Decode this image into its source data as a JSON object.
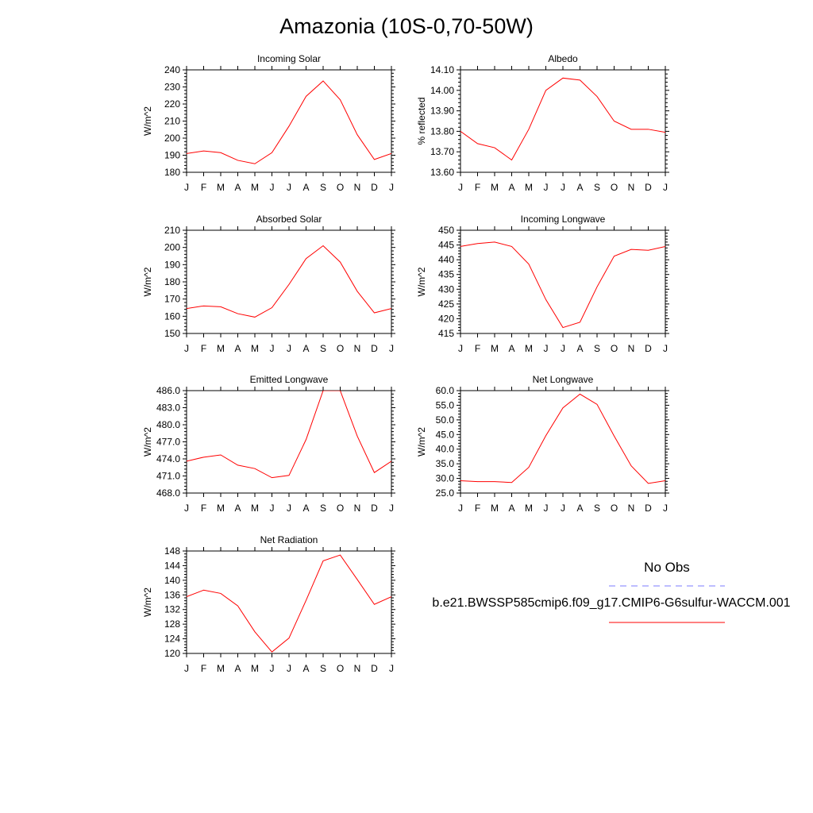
{
  "page": {
    "title": "Amazonia (10S-0,70-50W)"
  },
  "legend": {
    "obs_label": "No Obs",
    "obs_color": "#7b7bff",
    "case_label": "b.e21.BWSSP585cmip6.f09_g17.CMIP6-G6sulfur-WACCM.001",
    "case_color": "#ff0000"
  },
  "chart_data": [
    {
      "type": "line",
      "title": "Incoming Solar",
      "ylabel": "W/m^2",
      "categories": [
        "J",
        "F",
        "M",
        "A",
        "M",
        "J",
        "J",
        "A",
        "S",
        "O",
        "N",
        "D",
        "J"
      ],
      "ylim": [
        180,
        240
      ],
      "yticks": [
        "180",
        "190",
        "200",
        "210",
        "220",
        "230",
        "240"
      ],
      "series": [
        {
          "values": [
            191,
            192.5,
            191.5,
            187,
            185,
            191.5,
            207,
            224.5,
            233.5,
            222.5,
            202,
            187.5,
            191
          ]
        }
      ]
    },
    {
      "type": "line",
      "title": "Albedo",
      "ylabel": "% reflected",
      "categories": [
        "J",
        "F",
        "M",
        "A",
        "M",
        "J",
        "J",
        "A",
        "S",
        "O",
        "N",
        "D",
        "J"
      ],
      "ylim": [
        13.6,
        14.1
      ],
      "yticks": [
        "13.60",
        "13.70",
        "13.80",
        "13.90",
        "14.00",
        "14.10"
      ],
      "series": [
        {
          "values": [
            13.8,
            13.74,
            13.72,
            13.66,
            13.81,
            14.0,
            14.06,
            14.05,
            13.97,
            13.85,
            13.81,
            13.81,
            13.795
          ]
        }
      ]
    },
    {
      "type": "line",
      "title": "Absorbed Solar",
      "ylabel": "W/m^2",
      "categories": [
        "J",
        "F",
        "M",
        "A",
        "M",
        "J",
        "J",
        "A",
        "S",
        "O",
        "N",
        "D",
        "J"
      ],
      "ylim": [
        150,
        210
      ],
      "yticks": [
        "150",
        "160",
        "170",
        "180",
        "190",
        "200",
        "210"
      ],
      "series": [
        {
          "values": [
            164.5,
            166,
            165.5,
            161.5,
            159.5,
            165,
            178.5,
            193.5,
            201,
            191.5,
            174.5,
            162,
            164.5
          ]
        }
      ]
    },
    {
      "type": "line",
      "title": "Incoming Longwave",
      "ylabel": "W/m^2",
      "categories": [
        "J",
        "F",
        "M",
        "A",
        "M",
        "J",
        "J",
        "A",
        "S",
        "O",
        "N",
        "D",
        "J"
      ],
      "ylim": [
        415,
        450
      ],
      "yticks": [
        "415",
        "420",
        "425",
        "430",
        "435",
        "440",
        "445",
        "450"
      ],
      "series": [
        {
          "values": [
            444.5,
            445.5,
            446,
            444.5,
            438.5,
            426.5,
            417,
            418.8,
            430.8,
            441.2,
            443.5,
            443.2,
            444.5
          ]
        }
      ]
    },
    {
      "type": "line",
      "title": "Emitted Longwave",
      "ylabel": "W/m^2",
      "categories": [
        "J",
        "F",
        "M",
        "A",
        "M",
        "J",
        "J",
        "A",
        "S",
        "O",
        "N",
        "D",
        "J"
      ],
      "ylim": [
        468,
        486
      ],
      "yticks": [
        "468.0",
        "471.0",
        "474.0",
        "477.0",
        "480.0",
        "483.0",
        "486.0"
      ],
      "series": [
        {
          "values": [
            473.6,
            474.3,
            474.7,
            472.9,
            472.3,
            470.7,
            471.1,
            477.4,
            486,
            486,
            478,
            471.6,
            473.6
          ]
        }
      ]
    },
    {
      "type": "line",
      "title": "Net Longwave",
      "ylabel": "W/m^2",
      "categories": [
        "J",
        "F",
        "M",
        "A",
        "M",
        "J",
        "J",
        "A",
        "S",
        "O",
        "N",
        "D",
        "J"
      ],
      "ylim": [
        25,
        60
      ],
      "yticks": [
        "25.0",
        "30.0",
        "35.0",
        "40.0",
        "45.0",
        "50.0",
        "55.0",
        "60.0"
      ],
      "series": [
        {
          "values": [
            29.2,
            28.9,
            28.9,
            28.6,
            33.8,
            44.6,
            54.1,
            58.8,
            55.3,
            44.5,
            34.3,
            28.3,
            29.2
          ]
        }
      ]
    },
    {
      "type": "line",
      "title": "Net Radiation",
      "ylabel": "W/m^2",
      "categories": [
        "J",
        "F",
        "M",
        "A",
        "M",
        "J",
        "J",
        "A",
        "S",
        "O",
        "N",
        "D",
        "J"
      ],
      "ylim": [
        120,
        148
      ],
      "yticks": [
        "120",
        "124",
        "128",
        "132",
        "136",
        "140",
        "144",
        "148"
      ],
      "series": [
        {
          "values": [
            135.5,
            137.3,
            136.4,
            133,
            125.9,
            120.4,
            124.2,
            134.5,
            145.3,
            146.9,
            140.2,
            133.4,
            135.5
          ]
        }
      ]
    }
  ]
}
